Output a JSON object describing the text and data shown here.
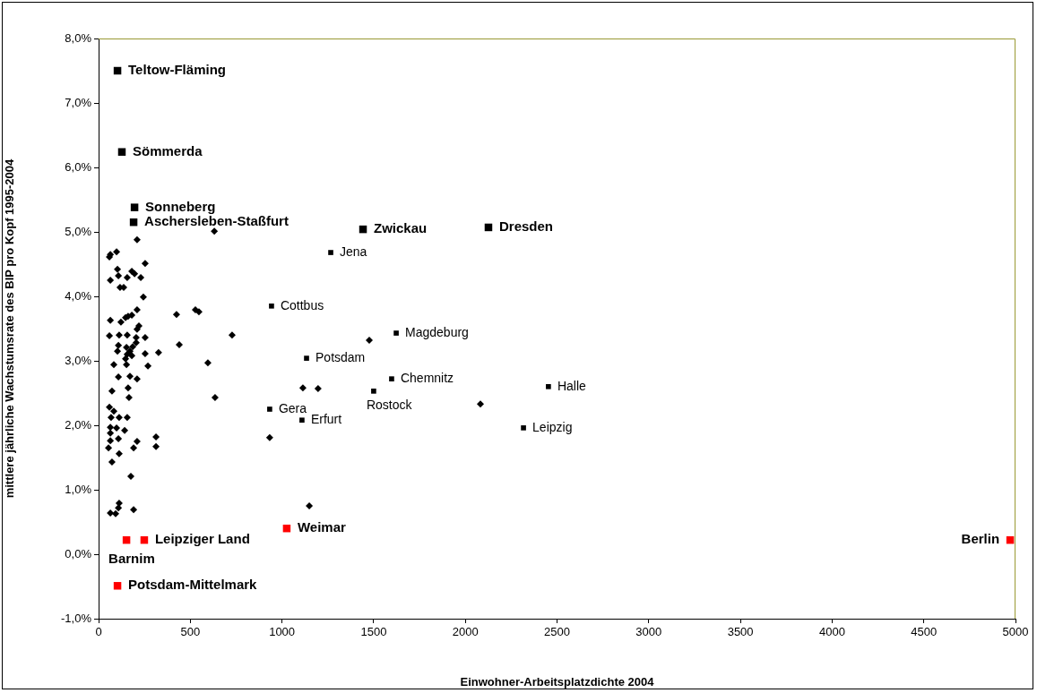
{
  "chart_data": {
    "type": "scatter",
    "xlabel": "Einwohner-Arbeitsplatzdichte 2004",
    "ylabel": "mittlere jährliche Wachstumsrate des BIP pro Kopf 1995-2004",
    "xlim": [
      0,
      5000
    ],
    "xticks": [
      0,
      500,
      1000,
      1500,
      2000,
      2500,
      3000,
      3500,
      4000,
      4500,
      5000
    ],
    "ylim": [
      -1,
      8
    ],
    "yticks": [
      {
        "value": -1,
        "label": "-1,0%"
      },
      {
        "value": 0,
        "label": "0,0%"
      },
      {
        "value": 1,
        "label": "1,0%"
      },
      {
        "value": 2,
        "label": "2,0%"
      },
      {
        "value": 3,
        "label": "3,0%"
      },
      {
        "value": 4,
        "label": "4,0%"
      },
      {
        "value": 5,
        "label": "5,0%"
      },
      {
        "value": 6,
        "label": "6,0%"
      },
      {
        "value": 7,
        "label": "7,0%"
      },
      {
        "value": 8,
        "label": "8,0%"
      }
    ],
    "grid": false,
    "legend": false,
    "series": [
      {
        "color": "#000000",
        "marker": "diamond",
        "x": [
          631,
          547,
          528,
          425,
          728,
          440,
          596,
          327,
          269,
          254,
          254,
          1476,
          1114,
          1197,
          2082,
          933,
          1149,
          313,
          313,
          635,
          210,
          59,
          64,
          98,
          254,
          103,
          181,
          196,
          108,
          156,
          230,
          64,
          117,
          137,
          244,
          210,
          64,
          122,
          147,
          161,
          181,
          220,
          210,
          59,
          112,
          156,
          205,
          108,
          103,
          152,
          186,
          205,
          171,
          156,
          147,
          181,
          83,
          152,
          108,
          171,
          210,
          73,
          161,
          166,
          59,
          83,
          68,
          112,
          156,
          64,
          98,
          142,
          64,
          108,
          64,
          210,
          191,
          54,
          112,
          73,
          176,
          112,
          108,
          64,
          93,
          191
        ],
        "values": [
          5.01,
          3.76,
          3.79,
          3.72,
          3.4,
          3.25,
          2.97,
          3.13,
          2.92,
          3.11,
          3.36,
          3.32,
          2.58,
          2.57,
          2.33,
          1.81,
          0.75,
          1.82,
          1.67,
          2.43,
          4.88,
          4.61,
          4.65,
          4.69,
          4.51,
          4.42,
          4.39,
          4.35,
          4.32,
          4.29,
          4.29,
          4.25,
          4.14,
          4.14,
          3.99,
          3.79,
          3.63,
          3.6,
          3.67,
          3.69,
          3.71,
          3.54,
          3.49,
          3.39,
          3.4,
          3.4,
          3.36,
          3.24,
          3.15,
          3.21,
          3.22,
          3.28,
          3.15,
          3.1,
          3.03,
          3.08,
          2.94,
          2.94,
          2.75,
          2.76,
          2.72,
          2.53,
          2.58,
          2.43,
          2.28,
          2.22,
          2.12,
          2.12,
          2.12,
          1.97,
          1.96,
          1.92,
          1.88,
          1.79,
          1.76,
          1.75,
          1.65,
          1.65,
          1.56,
          1.43,
          1.21,
          0.79,
          0.72,
          0.64,
          0.63,
          0.69
        ]
      },
      {
        "color": "#000000",
        "marker": "square",
        "x": [
          103,
          127,
          196,
          191,
          1442,
          2126
        ],
        "values": [
          7.5,
          6.24,
          5.38,
          5.15,
          5.04,
          5.07
        ]
      },
      {
        "color": "#000000",
        "marker": "square",
        "x": [
          1266,
          943,
          1623,
          1134,
          1598,
          1500,
          2453,
          2317,
          933,
          1109
        ],
        "values": [
          4.68,
          3.85,
          3.43,
          3.04,
          2.72,
          2.53,
          2.6,
          1.96,
          2.25,
          2.08
        ]
      },
      {
        "color": "#ff0000",
        "marker": "square",
        "x": [
          152,
          249,
          103,
          1026,
          4971
        ],
        "values": [
          0.22,
          0.22,
          -0.49,
          0.4,
          0.22
        ]
      }
    ],
    "annotations": [
      {
        "text": "Teltow-Fläming",
        "x": 103,
        "y": 7.5
      },
      {
        "text": "Sömmerda",
        "x": 127,
        "y": 6.24
      },
      {
        "text": "Sonneberg",
        "x": 196,
        "y": 5.38
      },
      {
        "text": "Aschersleben-Staßfurt",
        "x": 191,
        "y": 5.15
      },
      {
        "text": "Zwickau",
        "x": 1442,
        "y": 5.04
      },
      {
        "text": "Dresden",
        "x": 2126,
        "y": 5.07
      },
      {
        "text": "Jena",
        "x": 1266,
        "y": 4.68
      },
      {
        "text": "Cottbus",
        "x": 943,
        "y": 3.85
      },
      {
        "text": "Magdeburg",
        "x": 1623,
        "y": 3.43
      },
      {
        "text": "Potsdam",
        "x": 1134,
        "y": 3.04
      },
      {
        "text": "Chemnitz",
        "x": 1598,
        "y": 2.72
      },
      {
        "text": "Rostock",
        "x": 1500,
        "y": 2.53
      },
      {
        "text": "Halle",
        "x": 2453,
        "y": 2.6
      },
      {
        "text": "Leipzig",
        "x": 2317,
        "y": 1.96
      },
      {
        "text": "Gera",
        "x": 933,
        "y": 2.25
      },
      {
        "text": "Erfurt",
        "x": 1109,
        "y": 2.08
      },
      {
        "text": "Barnim",
        "x": 152,
        "y": 0.22
      },
      {
        "text": "Leipziger Land",
        "x": 249,
        "y": 0.22
      },
      {
        "text": "Potsdam-Mittelmark",
        "x": 103,
        "y": -0.49
      },
      {
        "text": "Weimar",
        "x": 1026,
        "y": 0.4
      },
      {
        "text": "Berlin",
        "x": 4971,
        "y": 0.22
      }
    ]
  }
}
